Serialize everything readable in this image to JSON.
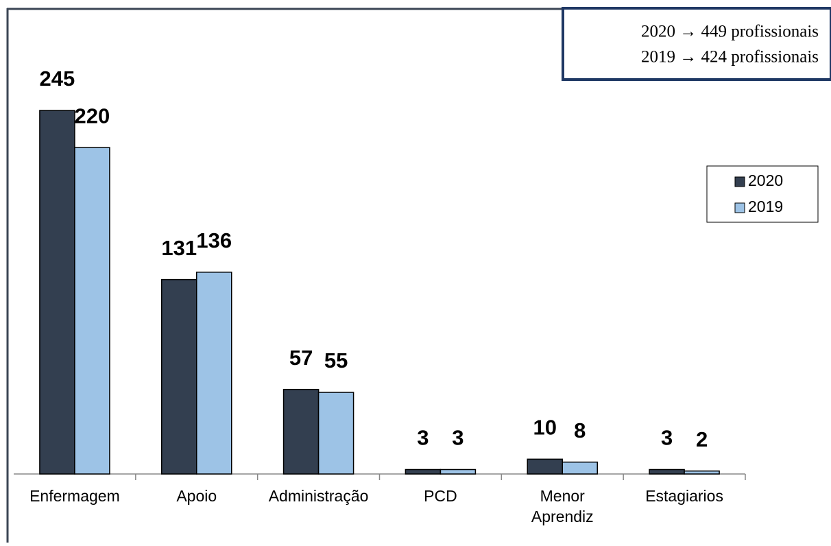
{
  "chart_data": {
    "type": "bar",
    "categories": [
      "Enfermagem",
      "Apoio",
      "Administração",
      "PCD",
      "Menor Aprendiz",
      "Estagiarios"
    ],
    "series": [
      {
        "name": "2020",
        "color": "#333f50",
        "values": [
          245,
          131,
          57,
          3,
          10,
          3
        ]
      },
      {
        "name": "2019",
        "color": "#9dc3e6",
        "values": [
          220,
          136,
          55,
          3,
          8,
          2
        ]
      }
    ],
    "annotations": [
      "2020 → 449 profissionais",
      "2019 → 424 profissionais"
    ],
    "legend": "right"
  }
}
